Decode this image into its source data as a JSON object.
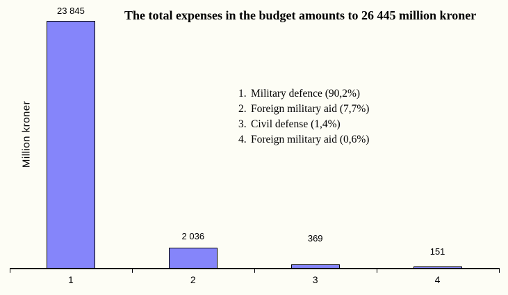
{
  "title": "The total expenses in the budget amounts to 26 445 million kroner",
  "y_axis": {
    "label": "Million kroner"
  },
  "legend": {
    "items": [
      {
        "index": "1.",
        "label": "Military defence (90,2%)"
      },
      {
        "index": "2.",
        "label": "Foreign military aid (7,7%)"
      },
      {
        "index": "3.",
        "label": "Civil defense (1,4%)"
      },
      {
        "index": "4.",
        "label": "Foreign military aid (0,6%)"
      }
    ]
  },
  "chart_data": {
    "type": "bar",
    "title": "The total expenses in the budget amounts to 26 445 million kroner",
    "xlabel": "",
    "ylabel": "Million kroner",
    "categories": [
      "1",
      "2",
      "3",
      "4"
    ],
    "values": [
      23845,
      2036,
      369,
      151
    ],
    "value_labels": [
      "23 845",
      "2 036",
      "369",
      "151"
    ],
    "percentages": [
      90.2,
      7.7,
      1.4,
      0.6
    ],
    "category_names": [
      "Military defence",
      "Foreign military aid",
      "Civil defense",
      "Foreign military aid"
    ],
    "legend_entries": [
      "1. Military defence (90,2%)",
      "2. Foreign military aid (7,7%)",
      "3. Civil defense (1,4%)",
      "4. Foreign military aid (0,6%)"
    ],
    "total_million_kroner": "26 445",
    "ylim": [
      0,
      23845
    ],
    "grid": false,
    "legend_position": "center-right",
    "bar_color": "#8585fa",
    "bar_border_color": "#000000",
    "background_color": "#fdfdf5"
  }
}
